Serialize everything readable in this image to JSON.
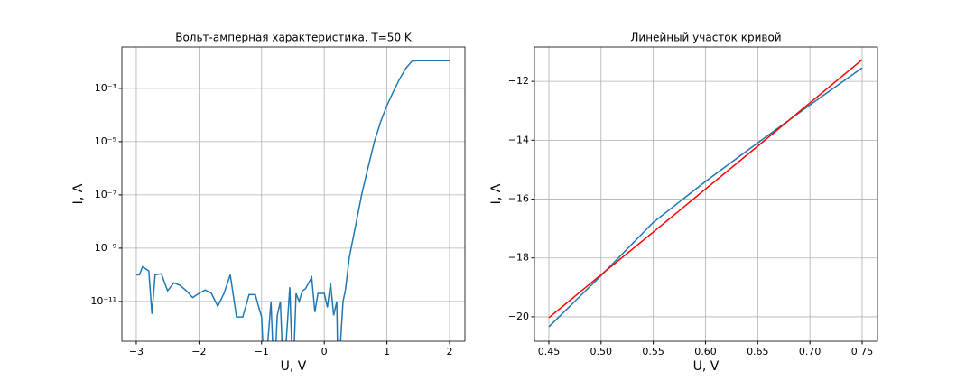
{
  "chart_data": [
    {
      "type": "line",
      "title": "Вольт-амперная характеристика. T=50 K",
      "x_label": "U, V",
      "y_label": "I, A",
      "log_y": true,
      "grid": true,
      "x": [
        -3,
        -2.95,
        -2.9,
        -2.8,
        -2.75,
        -2.7,
        -2.6,
        -2.5,
        -2.4,
        -2.3,
        -2.2,
        -2.1,
        -2.0,
        -1.9,
        -1.8,
        -1.7,
        -1.6,
        -1.5,
        -1.4,
        -1.3,
        -1.2,
        -1.1,
        -1.05,
        -1.0,
        -0.95,
        -0.85,
        -0.8,
        -0.75,
        -0.7,
        -0.65,
        -0.55,
        -0.5,
        -0.45,
        -0.4,
        -0.35,
        -0.3,
        -0.2,
        -0.15,
        -0.1,
        0,
        0.05,
        0.1,
        0.15,
        0.2,
        0.22,
        0.3,
        0.34,
        0.4,
        0.5,
        0.6,
        0.7,
        0.8,
        0.9,
        1.0,
        1.1,
        1.2,
        1.3,
        1.4,
        1.5,
        1.75,
        2.0
      ],
      "series": [
        {
          "color": "#1f77b4",
          "values": [
            1e-10,
            1e-10,
            2e-10,
            1.4e-10,
            3.4e-12,
            1e-10,
            1.1e-10,
            2.5e-11,
            5e-11,
            4e-11,
            2.5e-11,
            1.4e-11,
            2e-11,
            2.7e-11,
            2e-11,
            6.6e-12,
            2e-11,
            1e-10,
            2.6e-12,
            2.6e-12,
            1.8e-11,
            1.8e-11,
            6.6e-12,
            2.6e-12,
            1e-14,
            1e-11,
            1e-14,
            3e-12,
            1e-11,
            1e-14,
            3.4e-11,
            1e-14,
            2e-11,
            1e-11,
            2.5e-11,
            3e-11,
            8e-11,
            4e-12,
            2e-11,
            2e-11,
            6e-12,
            5e-11,
            3e-12,
            1e-11,
            1e-14,
            1e-11,
            2.9e-11,
            4.6e-10,
            7e-09,
            1.1e-07,
            1.1e-06,
            1e-05,
            5.6e-05,
            0.00023,
            0.00073,
            0.0022,
            0.0056,
            0.0105,
            0.011,
            0.011,
            0.011
          ]
        }
      ],
      "xlim": [
        -3.23,
        2.245
      ],
      "ylim": [
        3.2e-13,
        0.036
      ],
      "xticks": [
        {
          "value": -3,
          "label": "−3"
        },
        {
          "value": -2,
          "label": "−2"
        },
        {
          "value": -1,
          "label": "−1"
        },
        0,
        1,
        2
      ],
      "yticks": [
        {
          "value": 1e-11,
          "label": "10⁻¹¹"
        },
        {
          "value": 1e-09,
          "label": "10⁻⁹"
        },
        {
          "value": 1e-07,
          "label": "10⁻⁷"
        },
        {
          "value": 1e-05,
          "label": "10⁻⁵"
        },
        {
          "value": 0.001,
          "label": "10⁻³"
        }
      ]
    },
    {
      "type": "line",
      "title": "Линейный участок кривой",
      "x_label": "U, V",
      "y_label": "I, A",
      "log_y": false,
      "grid": true,
      "x": [
        0.45,
        0.5,
        0.55,
        0.6,
        0.65,
        0.7,
        0.75
      ],
      "series": [
        {
          "color": "#1f77b4",
          "values": [
            -20.34,
            -18.6,
            -16.79,
            -15.4,
            -14.09,
            -12.8,
            -11.54
          ]
        },
        {
          "color": "#ff0000",
          "values": [
            -20.03,
            -18.57,
            -17.12,
            -15.66,
            -14.2,
            -12.73,
            -11.26
          ]
        }
      ],
      "xlim": [
        0.4362,
        0.7647
      ],
      "ylim": [
        -20.83,
        -10.83
      ],
      "xticks": [
        0.45,
        {
          "value": 0.5,
          "label": "0.50"
        },
        0.55,
        {
          "value": 0.6,
          "label": "0.60"
        },
        0.65,
        {
          "value": 0.7,
          "label": "0.70"
        },
        0.75
      ],
      "yticks": [
        {
          "value": -20,
          "label": "−20"
        },
        {
          "value": -18,
          "label": "−18"
        },
        {
          "value": -16,
          "label": "−16"
        },
        {
          "value": -14,
          "label": "−14"
        },
        {
          "value": -12,
          "label": "−12"
        }
      ]
    }
  ]
}
